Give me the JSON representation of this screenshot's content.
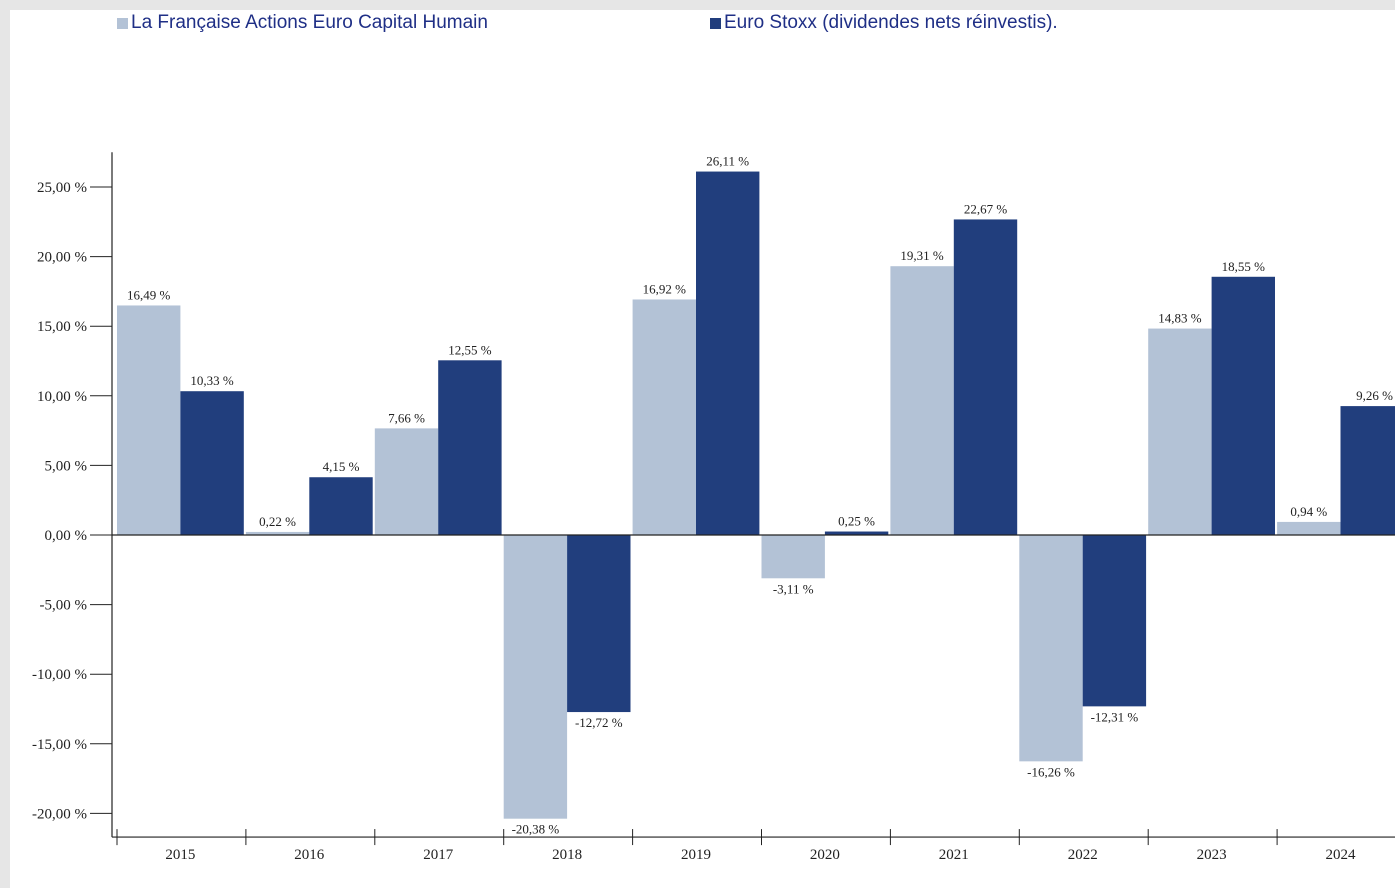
{
  "legend": [
    {
      "label": "La Française Actions Euro Capital Humain",
      "color": "#b3c2d6"
    },
    {
      "label": "Euro Stoxx (dividendes nets réinvestis).",
      "color": "#213e7d"
    }
  ],
  "chart_data": {
    "type": "bar",
    "categories": [
      "2015",
      "2016",
      "2017",
      "2018",
      "2019",
      "2020",
      "2021",
      "2022",
      "2023",
      "2024"
    ],
    "series": [
      {
        "name": "La Française Actions Euro Capital Humain",
        "values": [
          16.49,
          0.22,
          7.66,
          -20.38,
          16.92,
          -3.11,
          19.31,
          -16.26,
          14.83,
          0.94
        ],
        "labels": [
          "16,49 %",
          "0,22 %",
          "7,66 %",
          "-20,38 %",
          "16,92 %",
          "-3,11 %",
          "19,31 %",
          "-16,26 %",
          "14,83 %",
          "0,94 %"
        ]
      },
      {
        "name": "Euro Stoxx (dividendes nets réinvestis).",
        "values": [
          10.33,
          4.15,
          12.55,
          -12.72,
          26.11,
          0.25,
          22.67,
          -12.31,
          18.55,
          9.26
        ],
        "labels": [
          "10,33 %",
          "4,15 %",
          "12,55 %",
          "-12,72 %",
          "26,11 %",
          "0,25 %",
          "22,67 %",
          "-12,31 %",
          "18,55 %",
          "9,26 %"
        ]
      }
    ],
    "yticks": [
      25,
      20,
      15,
      10,
      5,
      0,
      -5,
      -10,
      -15,
      -20
    ],
    "ytick_labels": [
      "25,00 %",
      "20,00 %",
      "15,00 %",
      "10,00 %",
      "5,00 %",
      "0,00 %",
      "-5,00 %",
      "-10,00 %",
      "-15,00 %",
      "-20,00 %"
    ],
    "ylim": [
      -21.7,
      27.5
    ],
    "colors": {
      "series1": "#b3c2d6",
      "series2": "#213e7d",
      "text": "#222222",
      "axis": "#222222"
    },
    "grid": false,
    "legend_position": "top"
  }
}
